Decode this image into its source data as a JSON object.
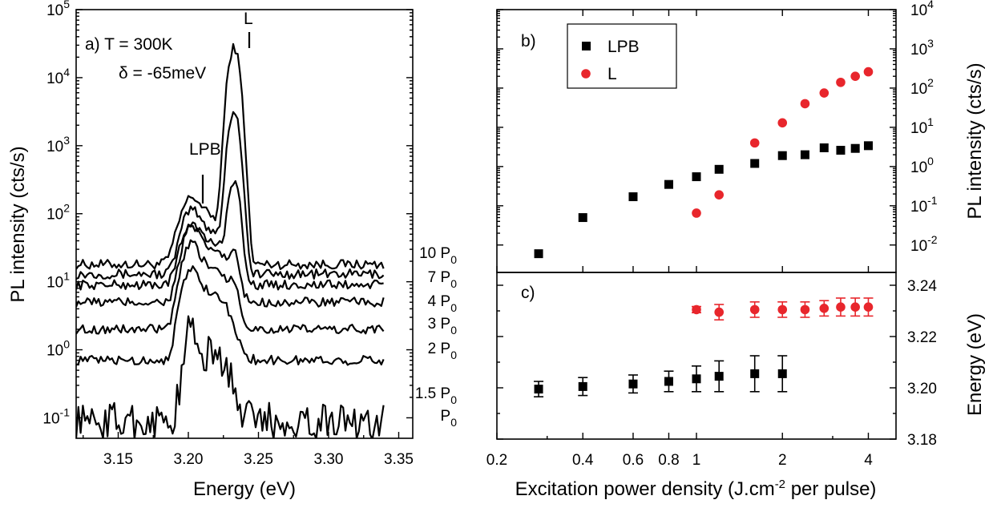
{
  "chart_data": [
    {
      "panel": "a)",
      "type": "line",
      "xlabel": "Energy (eV)",
      "ylabel": "PL intensity (cts/s)",
      "xlim": [
        3.12,
        3.36
      ],
      "ylim": [
        0.05,
        100000
      ],
      "yscale": "log",
      "xticks": [
        3.15,
        3.2,
        3.25,
        3.3,
        3.35
      ],
      "xtick_labels": [
        "3.15",
        "3.20",
        "3.25",
        "3.30",
        "3.35"
      ],
      "ytick_exponents": [
        -1,
        0,
        1,
        2,
        3,
        4,
        5
      ],
      "annotations": {
        "temp": "a) T = 300K",
        "detuning": "δ = -65meV",
        "lpb": "LPB",
        "l": "L"
      },
      "series": [
        {
          "name": "10 P0",
          "label": "10 P",
          "sub": "0",
          "base": 18,
          "lpb": 145,
          "lpbw": 0.009,
          "l": 28000,
          "lw": 0.0045
        },
        {
          "name": "7 P0",
          "label": "7 P",
          "sub": "0",
          "base": 13,
          "lpb": 95,
          "lpbw": 0.008,
          "l": 3200,
          "lw": 0.0045
        },
        {
          "name": "4 P0",
          "label": "4 P",
          "sub": "0",
          "base": 9,
          "lpb": 60,
          "lpbw": 0.008,
          "l": 300,
          "lw": 0.0045
        },
        {
          "name": "3 P0",
          "label": "3 P",
          "sub": "0",
          "base": 5,
          "lpb": 55,
          "lpbw": 0.0075,
          "l": 18,
          "lw": 0.004
        },
        {
          "name": "2 P0",
          "label": "2 P",
          "sub": "0",
          "base": 2,
          "lpb": 32,
          "lpbw": 0.0075,
          "l": 6,
          "lw": 0.004
        },
        {
          "name": "1.5 P0",
          "label": "1.5 P",
          "sub": "0",
          "base": 0.7,
          "lpb": 14,
          "lpbw": 0.0075,
          "l": 0,
          "lw": 0.004
        },
        {
          "name": "P0",
          "label": "P",
          "sub": "0",
          "base": 0.09,
          "lpb": 1.8,
          "lpbw": 0.0055,
          "l": 0,
          "lw": 0.004
        }
      ]
    },
    {
      "panel": "b)",
      "type": "scatter",
      "ylabel": "PL intensity (cts/s)",
      "xscale": "log",
      "yscale": "log",
      "xlim": [
        0.2,
        5.0
      ],
      "ylim": [
        0.002,
        10000
      ],
      "ytick_exponents": [
        -2,
        -1,
        0,
        1,
        2,
        3,
        4
      ],
      "legend": {
        "position": "top-left",
        "entries": [
          "LPB",
          "L"
        ]
      },
      "series": [
        {
          "name": "LPB",
          "color": "#000000",
          "marker": "square",
          "x": [
            0.28,
            0.4,
            0.6,
            0.8,
            1.0,
            1.2,
            1.6,
            2.0,
            2.4,
            2.8,
            3.2,
            3.6,
            4.0
          ],
          "y": [
            0.006,
            0.05,
            0.17,
            0.35,
            0.55,
            0.85,
            1.2,
            1.9,
            2.0,
            3.0,
            2.6,
            2.9,
            3.4
          ]
        },
        {
          "name": "L",
          "color": "#e8262c",
          "marker": "circle",
          "x": [
            1.0,
            1.2,
            1.6,
            2.0,
            2.4,
            2.8,
            3.2,
            3.6,
            4.0
          ],
          "y": [
            0.065,
            0.19,
            4.0,
            13,
            40,
            75,
            140,
            200,
            260
          ]
        }
      ]
    },
    {
      "panel": "c)",
      "type": "scatter",
      "xlabel": "Excitation power density (J.cm^-2 per pulse)",
      "xlabel_main": "Excitation power density (J.cm",
      "xlabel_sup": "-2",
      "xlabel_tail": " per pulse)",
      "ylabel": "Energy (eV)",
      "xscale": "log",
      "xlim": [
        0.2,
        5.0
      ],
      "ylim": [
        3.18,
        3.245
      ],
      "xticks": [
        0.2,
        0.4,
        0.6,
        0.8,
        1,
        2,
        4
      ],
      "xtick_labels": [
        "0.2",
        "0.4",
        "0.6",
        "0.8",
        "1",
        "2",
        "4"
      ],
      "yticks": [
        3.18,
        3.2,
        3.22,
        3.24
      ],
      "ytick_labels": [
        "3.18",
        "3.20",
        "3.22",
        "3.24"
      ],
      "series": [
        {
          "name": "LPB",
          "color": "#000000",
          "marker": "square",
          "x": [
            0.28,
            0.4,
            0.6,
            0.8,
            1.0,
            1.2,
            1.6,
            2.0
          ],
          "y": [
            3.1995,
            3.2005,
            3.2015,
            3.2025,
            3.2035,
            3.2045,
            3.2055,
            3.2055
          ],
          "err": [
            0.003,
            0.0035,
            0.0035,
            0.004,
            0.005,
            0.006,
            0.007,
            0.007
          ]
        },
        {
          "name": "L",
          "color": "#e8262c",
          "marker": "circle",
          "x": [
            1.0,
            1.2,
            1.6,
            2.0,
            2.4,
            2.8,
            3.2,
            3.6,
            4.0
          ],
          "y": [
            3.2305,
            3.2295,
            3.2305,
            3.2305,
            3.2305,
            3.231,
            3.2315,
            3.2315,
            3.2315
          ],
          "err": [
            0.0012,
            0.003,
            0.003,
            0.003,
            0.003,
            0.003,
            0.0035,
            0.0035,
            0.0035
          ]
        }
      ]
    }
  ]
}
